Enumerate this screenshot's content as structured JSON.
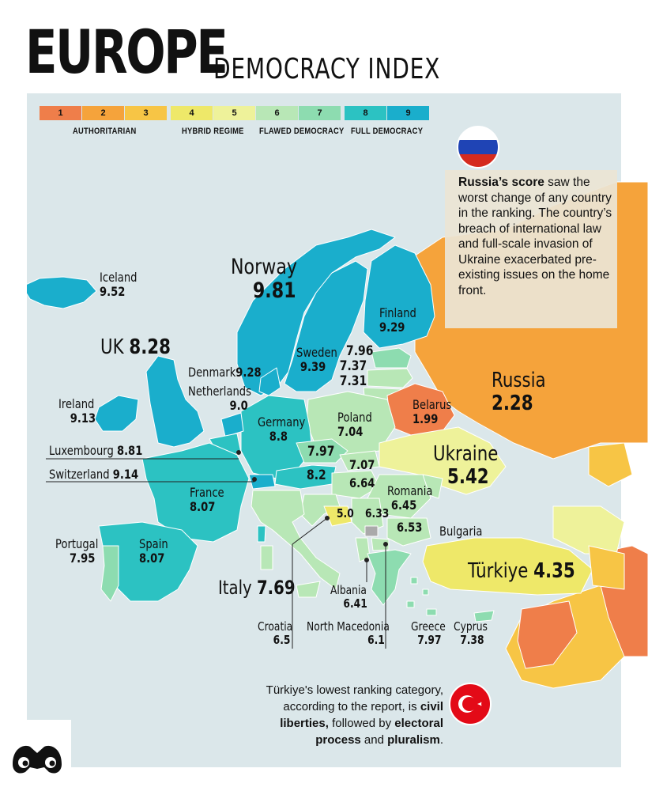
{
  "title": {
    "main": "EUROPE",
    "sub": "DEMOCRACY INDEX"
  },
  "legend": {
    "scale": [
      {
        "n": "1",
        "color": "#ef7e4a"
      },
      {
        "n": "2",
        "color": "#f5a33b"
      },
      {
        "n": "3",
        "color": "#f7c545"
      },
      {
        "n": "4",
        "color": "#eee869"
      },
      {
        "n": "5",
        "color": "#eef29a"
      },
      {
        "n": "6",
        "color": "#b8e7b6"
      },
      {
        "n": "7",
        "color": "#8ddcb0"
      },
      {
        "n": "8",
        "color": "#2cc2c2"
      },
      {
        "n": "9",
        "color": "#1aaecc"
      }
    ],
    "categories": [
      "AUTHORITARIAN",
      "HYBRID REGIME",
      "FLAWED DEMOCRACY",
      "FULL DEMOCRACY"
    ]
  },
  "countries": {
    "norway": {
      "name": "Norway",
      "score": "9.81"
    },
    "iceland": {
      "name": "Iceland",
      "score": "9.52"
    },
    "finland": {
      "name": "Finland",
      "score": "9.29"
    },
    "uk": {
      "name": "UK",
      "score": "8.28"
    },
    "sweden": {
      "name": "Sweden",
      "score": "9.39"
    },
    "baltic": {
      "scores": [
        "7.96",
        "7.37",
        "7.31"
      ]
    },
    "denmark": {
      "name": "Denmark",
      "score": "9.28"
    },
    "netherlands": {
      "name": "Netherlands",
      "score": "9.0"
    },
    "ireland": {
      "name": "Ireland",
      "score": "9.13"
    },
    "germany": {
      "name": "Germany",
      "score": "8.8"
    },
    "poland": {
      "name": "Poland",
      "score": "7.04"
    },
    "belarus": {
      "name": "Belarus",
      "score": "1.99"
    },
    "russia": {
      "name": "Russia",
      "score": "2.28"
    },
    "luxembourg": {
      "name": "Luxembourg",
      "score": "8.81"
    },
    "czechia": {
      "score": "7.97"
    },
    "slovakia": {
      "score": "7.07"
    },
    "ukraine": {
      "name": "Ukraine",
      "score": "5.42"
    },
    "switzerland": {
      "name": "Switzerland",
      "score": "9.14"
    },
    "austria": {
      "score": "8.2"
    },
    "hungary": {
      "score": "6.64"
    },
    "romania": {
      "name": "Romania",
      "score": "6.45"
    },
    "france": {
      "name": "France",
      "score": "8.07"
    },
    "bosnia": {
      "score": "5.0"
    },
    "serbia": {
      "score": "6.33"
    },
    "bulgaria": {
      "name": "Bulgaria",
      "score": "6.53"
    },
    "portugal": {
      "name": "Portugal",
      "score": "7.95"
    },
    "spain": {
      "name": "Spain",
      "score": "8.07"
    },
    "turkiye": {
      "name": "Türkiye",
      "score": "4.35"
    },
    "italy": {
      "name": "Italy",
      "score": "7.69"
    },
    "albania": {
      "name": "Albania",
      "score": "6.41"
    },
    "croatia": {
      "name": "Croatia",
      "score": "6.5"
    },
    "north_macedonia": {
      "name": "North Macedonia",
      "score": "6.1"
    },
    "greece": {
      "name": "Greece",
      "score": "7.97"
    },
    "cyprus": {
      "name": "Cyprus",
      "score": "7.38"
    }
  },
  "russia_note": {
    "bold": "Russia’s score",
    "text": " saw the worst change of any country in the ranking. The country’s breach of international law and full-scale invasion of Ukraine exacerbated pre-existing issues on the home front."
  },
  "turkiye_note": {
    "t1": "Türkiye's lowest ranking category, according to the report, is ",
    "b1": "civil liberties,",
    "t2": " followed by ",
    "b2": "electoral process",
    "t3": " and ",
    "b3": "pluralism",
    "t4": "."
  }
}
